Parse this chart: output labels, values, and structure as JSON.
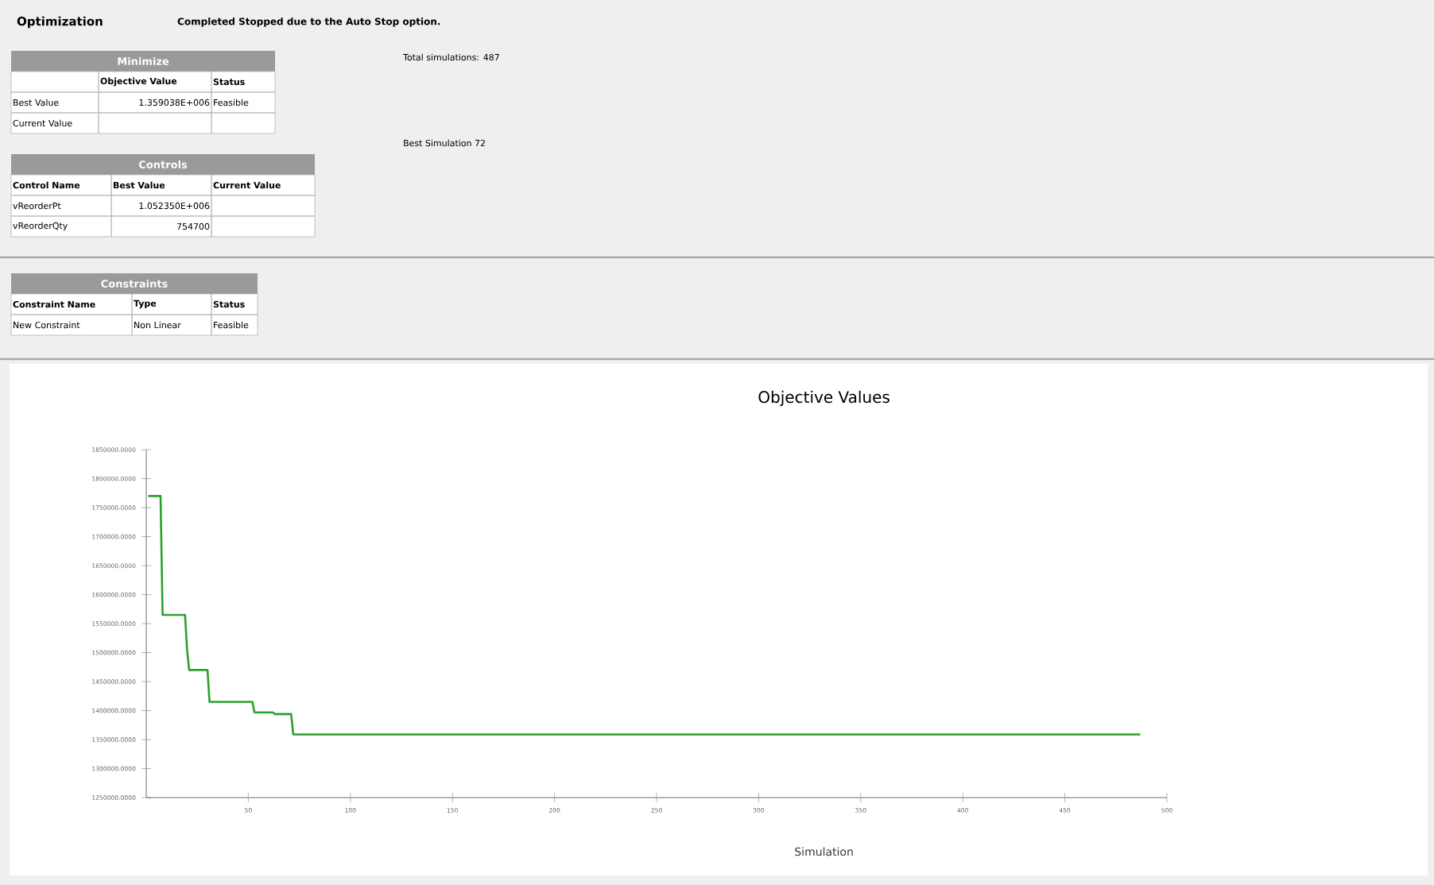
{
  "chart_data": [
    {
      "type": "other",
      "title": "Optimization",
      "subtitle": "Completed Stopped due to the Auto Stop option.",
      "annotations": [
        "Minimize",
        "Objective Value",
        "Status",
        "Best Value",
        "1.359038E+006",
        "Feasible",
        "Current Value",
        "Controls",
        "Control Name",
        "Best Value",
        "Current Value",
        "vReorderPt",
        "1.052350E+006",
        "vReorderQty",
        "754700",
        "Constraints",
        "Constraint Name",
        "Type",
        "Status",
        "New Constraint",
        "Non Linear",
        "Feasible",
        "Total simulations: 487",
        "Best Simulation 72"
      ]
    },
    {
      "type": "line",
      "title": "Objective Values",
      "xlabel": "Simulation",
      "xlim": [
        0,
        500
      ],
      "xticks": [
        50,
        100,
        150,
        200,
        250,
        300,
        350,
        400,
        450,
        500
      ],
      "ylim": [
        1250000,
        1850000
      ],
      "yticks": [
        {
          "value": 1250000,
          "label": "1250000.0000"
        },
        {
          "value": 1300000,
          "label": "1300000.0000"
        },
        {
          "value": 1350000,
          "label": "1350000.0000"
        },
        {
          "value": 1400000,
          "label": "1400000.0000"
        },
        {
          "value": 1450000,
          "label": "1450000.0000"
        },
        {
          "value": 1500000,
          "label": "1500000.0000"
        },
        {
          "value": 1550000,
          "label": "1550000.0000"
        },
        {
          "value": 1600000,
          "label": "1600000.0000"
        },
        {
          "value": 1650000,
          "label": "1650000.0000"
        },
        {
          "value": 1700000,
          "label": "1700000.0000"
        },
        {
          "value": 1750000,
          "label": "1750000.0000"
        },
        {
          "value": 1800000,
          "label": "1800000.0000"
        },
        {
          "value": 1850000,
          "label": "1850000.0000"
        }
      ],
      "series": [
        {
          "color": "#2ca02c",
          "x": [
            1,
            7,
            8,
            19,
            20,
            21,
            30,
            31,
            52,
            53,
            62,
            63,
            71,
            72,
            487
          ],
          "values": [
            1770000,
            1770000,
            1565000,
            1565000,
            1505000,
            1470000,
            1470000,
            1415000,
            1415000,
            1397000,
            1397000,
            1394000,
            1394000,
            1359000,
            1359000
          ]
        }
      ]
    }
  ]
}
